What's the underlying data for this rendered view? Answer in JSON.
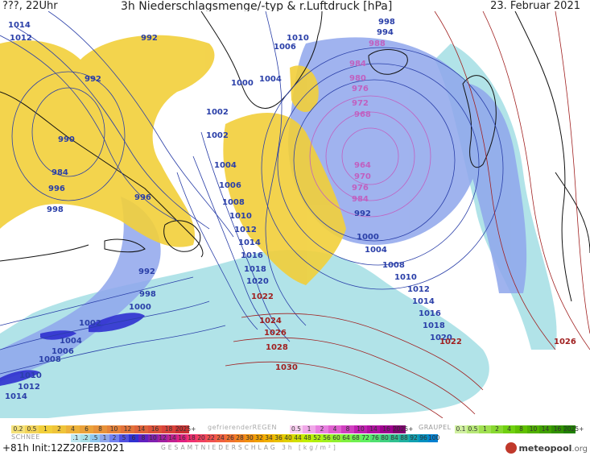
{
  "header": {
    "left": "???, 22Uhr",
    "center": "3h Niederschlagsmenge/-typ & r.Luftdruck [hPa]",
    "right": "23. Februar 2021"
  },
  "isobars": [
    {
      "label": "1014",
      "color": "#2a3fa8"
    },
    {
      "label": "1012",
      "color": "#2a3fa8"
    },
    {
      "label": "992",
      "color": "#2a3fa8"
    },
    {
      "label": "992",
      "color": "#2a3fa8"
    },
    {
      "label": "990",
      "color": "#2a3fa8"
    },
    {
      "label": "984",
      "color": "#2a3fa8"
    },
    {
      "label": "996",
      "color": "#2a3fa8"
    },
    {
      "label": "998",
      "color": "#2a3fa8"
    },
    {
      "label": "996",
      "color": "#2a3fa8"
    },
    {
      "label": "1010",
      "color": "#2a3fa8"
    },
    {
      "label": "1006",
      "color": "#2a3fa8"
    },
    {
      "label": "1000",
      "color": "#2a3fa8"
    },
    {
      "label": "1004",
      "color": "#2a3fa8"
    },
    {
      "label": "1002",
      "color": "#2a3fa8"
    },
    {
      "label": "1002",
      "color": "#2a3fa8"
    },
    {
      "label": "1004",
      "color": "#2a3fa8"
    },
    {
      "label": "1006",
      "color": "#2a3fa8"
    },
    {
      "label": "1008",
      "color": "#2a3fa8"
    },
    {
      "label": "1010",
      "color": "#2a3fa8"
    },
    {
      "label": "1012",
      "color": "#2a3fa8"
    },
    {
      "label": "1014",
      "color": "#2a3fa8"
    },
    {
      "label": "1016",
      "color": "#2a3fa8"
    },
    {
      "label": "1018",
      "color": "#2a3fa8"
    },
    {
      "label": "1020",
      "color": "#2a3fa8"
    },
    {
      "label": "998",
      "color": "#2a3fa8"
    },
    {
      "label": "994",
      "color": "#2a3fa8"
    },
    {
      "label": "988",
      "color": "#c060c0"
    },
    {
      "label": "984",
      "color": "#c060c0"
    },
    {
      "label": "980",
      "color": "#c060c0"
    },
    {
      "label": "976",
      "color": "#c060c0"
    },
    {
      "label": "972",
      "color": "#c060c0"
    },
    {
      "label": "968",
      "color": "#c060c0"
    },
    {
      "label": "964",
      "color": "#c060c0"
    },
    {
      "label": "970",
      "color": "#c060c0"
    },
    {
      "label": "976",
      "color": "#c060c0"
    },
    {
      "label": "984",
      "color": "#c060c0"
    },
    {
      "label": "992",
      "color": "#2a3fa8"
    },
    {
      "label": "1000",
      "color": "#2a3fa8"
    },
    {
      "label": "1004",
      "color": "#2a3fa8"
    },
    {
      "label": "1008",
      "color": "#2a3fa8"
    },
    {
      "label": "1010",
      "color": "#2a3fa8"
    },
    {
      "label": "1012",
      "color": "#2a3fa8"
    },
    {
      "label": "1014",
      "color": "#2a3fa8"
    },
    {
      "label": "1016",
      "color": "#2a3fa8"
    },
    {
      "label": "1018",
      "color": "#2a3fa8"
    },
    {
      "label": "1020",
      "color": "#2a3fa8"
    },
    {
      "label": "1022",
      "color": "#a02020"
    },
    {
      "label": "1022",
      "color": "#a02020"
    },
    {
      "label": "1024",
      "color": "#a02020"
    },
    {
      "label": "1026",
      "color": "#a02020"
    },
    {
      "label": "1026",
      "color": "#a02020"
    },
    {
      "label": "1028",
      "color": "#a02020"
    },
    {
      "label": "1030",
      "color": "#a02020"
    },
    {
      "label": "992",
      "color": "#2a3fa8"
    },
    {
      "label": "998",
      "color": "#2a3fa8"
    },
    {
      "label": "1000",
      "color": "#2a3fa8"
    },
    {
      "label": "1002",
      "color": "#2a3fa8"
    },
    {
      "label": "1004",
      "color": "#2a3fa8"
    },
    {
      "label": "1006",
      "color": "#2a3fa8"
    },
    {
      "label": "1008",
      "color": "#2a3fa8"
    },
    {
      "label": "1010",
      "color": "#2a3fa8"
    },
    {
      "label": "1012",
      "color": "#2a3fa8"
    },
    {
      "label": "1014",
      "color": "#2a3fa8"
    }
  ],
  "legend": {
    "snow_title": "SCHNEE",
    "freezing_rain_title": "gefrierenderREGEN",
    "graupel_title": "GRAUPEL",
    "snow_values": [
      "0.2",
      "0.5",
      "1",
      "2",
      "4",
      "6",
      "8",
      "10",
      "12",
      "14",
      "16",
      "18",
      "2025+"
    ],
    "freezing_values": [
      "0.5",
      "1",
      "2",
      "4",
      "8",
      "10",
      "14",
      "16",
      "2025+"
    ],
    "graupel_values": [
      "0.1",
      "0.5",
      "1",
      "2",
      "4",
      "8",
      "10",
      "14",
      "16",
      "2025+"
    ],
    "total_values": [
      ".1",
      ".2",
      ".5",
      "1",
      "2",
      "5",
      "6",
      "8",
      "10",
      "12",
      "14",
      "16",
      "18",
      "20",
      "22",
      "24",
      "26",
      "28",
      "30",
      "32",
      "34",
      "36",
      "40",
      "44",
      "48",
      "52",
      "56",
      "60",
      "64",
      "68",
      "72",
      "76",
      "80",
      "84",
      "88",
      "92",
      "96",
      "100"
    ],
    "total_title": "GESAMTNIEDERSCHLAG 3h [kg/m²]"
  },
  "footer": {
    "run": "+81h Init:12Z20FEB2021",
    "brand": "meteopool",
    "brand_suffix": ".org"
  },
  "colors": {
    "snow_yellow": "#f2cf3a",
    "rain_blue": "#8fa6ec",
    "light_rain": "#a9e0e6",
    "isobar_blue": "#2a3fa8",
    "isobar_red": "#a02020",
    "coast": "#111111"
  }
}
